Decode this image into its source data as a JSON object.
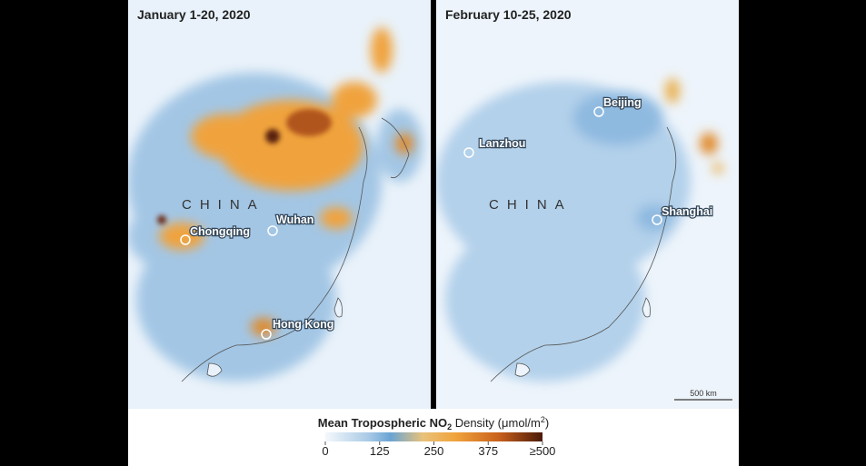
{
  "maps": [
    {
      "title": "January 1-20, 2020",
      "country": "CHINA",
      "cities": [
        "Chongqing",
        "Wuhan",
        "Hong Kong"
      ]
    },
    {
      "title": "February 10-25, 2020",
      "country": "CHINA",
      "cities": [
        "Beijing",
        "Lanzhou",
        "Shanghai"
      ],
      "scale": "500 km"
    }
  ],
  "legend": {
    "title": "Mean Tropospheric NO",
    "subscript": "2",
    "unit": " Density (μmol/m",
    "superscript": "2",
    "unit_close": ")",
    "range": [
      0,
      500
    ],
    "ticks": [
      0,
      125,
      250,
      375,
      {
        "value": 500,
        "label": "≥500"
      }
    ]
  }
}
